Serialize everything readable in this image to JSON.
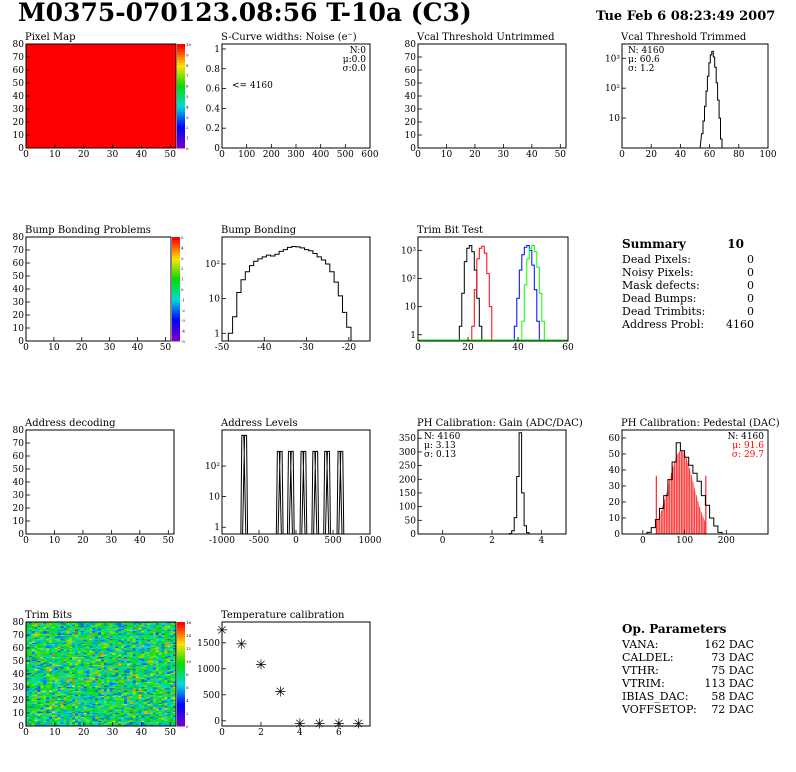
{
  "page": {
    "title": "M0375-070123.08:56 T-10a (C3)",
    "date": "Tue Feb  6 08:23:49 2007"
  },
  "chart_data": [
    {
      "id": "pixel-map",
      "type": "heatmap",
      "title": "Pixel Map",
      "xlim": [
        0,
        52
      ],
      "ylim": [
        0,
        80
      ],
      "xticks": [
        0,
        10,
        20,
        30,
        40,
        50
      ],
      "yticks": [
        0,
        10,
        20,
        30,
        40,
        50,
        60,
        70,
        80
      ],
      "fill": "uniform",
      "color": "#ff0000",
      "zlim": [
        0,
        10
      ],
      "zticks": [
        0,
        1,
        2,
        3,
        4,
        5,
        6,
        7,
        8,
        9,
        10
      ]
    },
    {
      "id": "scurve-widths",
      "type": "histogram",
      "title": "S-Curve widths: Noise (e⁻)",
      "xlim": [
        0,
        600
      ],
      "ylim": [
        0,
        1.05
      ],
      "xticks": [
        0,
        100,
        200,
        300,
        400,
        500,
        600
      ],
      "yticks": [
        0,
        0.2,
        0.4,
        0.6,
        0.8,
        1
      ],
      "stats": [
        [
          "N:",
          "0"
        ],
        [
          "μ:",
          "0.0"
        ],
        [
          "σ:",
          "0.0"
        ]
      ],
      "annotation": "<= 4160"
    },
    {
      "id": "vcal-untrimmed",
      "type": "histogram",
      "title": "Vcal Threshold Untrimmed",
      "xlim": [
        0,
        52
      ],
      "ylim": [
        0,
        80
      ],
      "xticks": [
        0,
        10,
        20,
        30,
        40,
        50
      ],
      "yticks": [
        0,
        10,
        20,
        30,
        40,
        50,
        60,
        70,
        80
      ]
    },
    {
      "id": "vcal-trimmed",
      "type": "histogram",
      "title": "Vcal Threshold Trimmed",
      "xlim": [
        0,
        100
      ],
      "ylog": true,
      "ylim": [
        1,
        3000
      ],
      "xticks": [
        0,
        20,
        40,
        60,
        80,
        100
      ],
      "yticks": [
        10,
        100,
        1000
      ],
      "ytick_labels": [
        "10",
        "10²",
        "10³"
      ],
      "stats": [
        [
          "N: ",
          "4160"
        ],
        [
          "μ: ",
          "60.6"
        ],
        [
          "σ: ",
          "1.2"
        ]
      ],
      "bins": [
        [
          53,
          1
        ],
        [
          55,
          3
        ],
        [
          56,
          8
        ],
        [
          57,
          25
        ],
        [
          58,
          80
        ],
        [
          59,
          250
        ],
        [
          60,
          700
        ],
        [
          61,
          1300
        ],
        [
          62,
          1700
        ],
        [
          63,
          1100
        ],
        [
          64,
          500
        ],
        [
          65,
          150
        ],
        [
          66,
          40
        ],
        [
          67,
          10
        ],
        [
          68,
          2
        ]
      ]
    },
    {
      "id": "bump-problems",
      "type": "heatmap",
      "title": "Bump Bonding Problems",
      "xlim": [
        0,
        52
      ],
      "ylim": [
        0,
        80
      ],
      "xticks": [
        0,
        10,
        20,
        30,
        40,
        50
      ],
      "yticks": [
        0,
        10,
        20,
        30,
        40,
        50,
        60,
        70,
        80
      ],
      "fill": "empty",
      "zlim": [
        -5,
        5
      ],
      "zticks": [
        -5,
        -4,
        -3,
        -2,
        -1,
        0,
        1,
        2,
        3,
        4,
        5
      ]
    },
    {
      "id": "bump-bonding",
      "type": "histogram",
      "title": "Bump Bonding",
      "xlim": [
        -50,
        -15
      ],
      "ylog": true,
      "ylim": [
        0.6,
        600
      ],
      "xticks": [
        -50,
        -40,
        -30,
        -20
      ],
      "yticks": [
        1,
        10,
        100
      ],
      "ytick_labels": [
        "1",
        "10",
        "10²"
      ],
      "bins": [
        [
          -48,
          1
        ],
        [
          -47,
          3
        ],
        [
          -46,
          15
        ],
        [
          -45,
          35
        ],
        [
          -44,
          60
        ],
        [
          -43,
          90
        ],
        [
          -42,
          120
        ],
        [
          -41,
          140
        ],
        [
          -40,
          160
        ],
        [
          -39,
          180
        ],
        [
          -38,
          170
        ],
        [
          -37,
          190
        ],
        [
          -36,
          230
        ],
        [
          -35,
          260
        ],
        [
          -34,
          300
        ],
        [
          -33,
          320
        ],
        [
          -32,
          310
        ],
        [
          -31,
          290
        ],
        [
          -30,
          260
        ],
        [
          -29,
          240
        ],
        [
          -28,
          200
        ],
        [
          -27,
          160
        ],
        [
          -26,
          130
        ],
        [
          -25,
          100
        ],
        [
          -24,
          60
        ],
        [
          -23,
          30
        ],
        [
          -22,
          12
        ],
        [
          -21,
          4
        ],
        [
          -20,
          1.5
        ]
      ]
    },
    {
      "id": "trim-bit-test",
      "type": "histogram",
      "title": "Trim Bit Test",
      "xlim": [
        0,
        60
      ],
      "ylog": true,
      "ylim": [
        0.6,
        3000
      ],
      "xticks": [
        0,
        20,
        40,
        60
      ],
      "yticks": [
        1,
        10,
        100,
        1000
      ],
      "ytick_labels": [
        "1",
        "10",
        "10²",
        "10³"
      ],
      "series": [
        {
          "color": "#000000",
          "bins": [
            [
              17,
              2
            ],
            [
              18,
              30
            ],
            [
              19,
              400
            ],
            [
              20,
              1200
            ],
            [
              21,
              1500
            ],
            [
              22,
              900
            ],
            [
              23,
              200
            ],
            [
              24,
              20
            ],
            [
              25,
              2
            ]
          ]
        },
        {
          "color": "#ff0000",
          "bins": [
            [
              22,
              2
            ],
            [
              23,
              40
            ],
            [
              24,
              500
            ],
            [
              25,
              1200
            ],
            [
              26,
              1400
            ],
            [
              27,
              800
            ],
            [
              28,
              150
            ],
            [
              29,
              10
            ]
          ]
        },
        {
          "color": "#0000ff",
          "bins": [
            [
              39,
              2
            ],
            [
              40,
              20
            ],
            [
              41,
              200
            ],
            [
              42,
              700
            ],
            [
              43,
              1300
            ],
            [
              44,
              1500
            ],
            [
              45,
              1000
            ],
            [
              46,
              300
            ],
            [
              47,
              40
            ],
            [
              48,
              3
            ]
          ]
        },
        {
          "color": "#00ff00",
          "bins": [
            [
              42,
              3
            ],
            [
              43,
              60
            ],
            [
              44,
              500
            ],
            [
              45,
              1200
            ],
            [
              46,
              1500
            ],
            [
              47,
              900
            ],
            [
              48,
              250
            ],
            [
              49,
              30
            ],
            [
              50,
              3
            ]
          ]
        }
      ]
    },
    {
      "id": "address-decoding",
      "type": "heatmap",
      "title": "Address decoding",
      "xlim": [
        0,
        52
      ],
      "ylim": [
        0,
        80
      ],
      "xticks": [
        0,
        10,
        20,
        30,
        40,
        50
      ],
      "yticks": [
        0,
        10,
        20,
        30,
        40,
        50,
        60,
        70,
        80
      ],
      "fill": "empty"
    },
    {
      "id": "address-levels",
      "type": "histogram",
      "title": "Address Levels",
      "xlim": [
        -1000,
        1000
      ],
      "ylog": true,
      "ylim": [
        0.6,
        1500
      ],
      "xticks": [
        -1000,
        -500,
        0,
        500,
        1000
      ],
      "yticks": [
        1,
        10,
        100
      ],
      "ytick_labels": [
        "1",
        "10",
        "10²"
      ],
      "peaks": [
        [
          -700,
          1000
        ],
        [
          -220,
          300
        ],
        [
          -70,
          300
        ],
        [
          100,
          300
        ],
        [
          260,
          300
        ],
        [
          420,
          300
        ],
        [
          600,
          300
        ]
      ]
    },
    {
      "id": "ph-gain",
      "type": "histogram",
      "title": "PH Calibration: Gain (ADC/DAC)",
      "xlim": [
        -1,
        5
      ],
      "ylim": [
        0,
        380
      ],
      "xticks": [
        0,
        2,
        4
      ],
      "yticks": [
        0,
        50,
        100,
        150,
        200,
        250,
        300,
        350
      ],
      "stats": [
        [
          "N: ",
          "4160"
        ],
        [
          "μ: ",
          "3.13"
        ],
        [
          "σ: ",
          "0.13"
        ]
      ],
      "bins": [
        [
          2.75,
          2
        ],
        [
          2.85,
          12
        ],
        [
          2.95,
          60
        ],
        [
          3.05,
          210
        ],
        [
          3.15,
          370
        ],
        [
          3.25,
          150
        ],
        [
          3.35,
          30
        ],
        [
          3.45,
          5
        ]
      ]
    },
    {
      "id": "ph-pedestal",
      "type": "histogram",
      "title": "PH Calibration: Pedestal (DAC)",
      "xlim": [
        -50,
        300
      ],
      "ylim": [
        0,
        65
      ],
      "xticks": [
        0,
        100,
        200
      ],
      "yticks": [
        0,
        10,
        20,
        30,
        40,
        50,
        60
      ],
      "stats": [
        [
          "N: ",
          "4160"
        ],
        [
          "μ: ",
          "91.6"
        ],
        [
          "σ: ",
          "29.7"
        ]
      ],
      "fit_mean": 91.6,
      "fit_sigma": 29.7,
      "bins": [
        [
          15,
          1
        ],
        [
          25,
          4
        ],
        [
          35,
          9
        ],
        [
          45,
          16
        ],
        [
          55,
          24
        ],
        [
          65,
          34
        ],
        [
          75,
          45
        ],
        [
          85,
          57
        ],
        [
          95,
          52
        ],
        [
          105,
          48
        ],
        [
          115,
          43
        ],
        [
          125,
          38
        ],
        [
          135,
          33
        ],
        [
          145,
          24
        ],
        [
          155,
          18
        ],
        [
          165,
          10
        ],
        [
          175,
          5
        ],
        [
          185,
          1
        ]
      ]
    },
    {
      "id": "trim-bits",
      "type": "heatmap",
      "title": "Trim Bits",
      "xlim": [
        0,
        52
      ],
      "ylim": [
        0,
        80
      ],
      "xticks": [
        0,
        10,
        20,
        30,
        40,
        50
      ],
      "yticks": [
        0,
        10,
        20,
        30,
        40,
        50,
        60,
        70,
        80
      ],
      "fill": "noise",
      "zlim": [
        0,
        16
      ],
      "zticks": [
        0,
        2,
        4,
        6,
        8,
        10,
        12,
        14,
        16
      ]
    },
    {
      "id": "temperature-calibration",
      "type": "scatter",
      "title": "Temperature calibration",
      "xlim": [
        0,
        7.6
      ],
      "ylim": [
        -100,
        1900
      ],
      "xticks": [
        0,
        2,
        4,
        6
      ],
      "yticks": [
        0,
        500,
        1000,
        1500
      ],
      "points": [
        [
          0,
          1750
        ],
        [
          1,
          1480
        ],
        [
          2,
          1080
        ],
        [
          3,
          560
        ],
        [
          4,
          -50
        ],
        [
          5,
          -50
        ],
        [
          6,
          -50
        ],
        [
          7,
          -50
        ]
      ]
    }
  ],
  "summary": {
    "title": "Summary",
    "value": "10",
    "rows": [
      {
        "label": "Dead Pixels:",
        "value": "0"
      },
      {
        "label": "Noisy Pixels:",
        "value": "0"
      },
      {
        "label": "Mask defects:",
        "value": "0"
      },
      {
        "label": "Dead Bumps:",
        "value": "0"
      },
      {
        "label": "Dead Trimbits:",
        "value": "0"
      },
      {
        "label": "Address Probl:",
        "value": "4160"
      }
    ]
  },
  "op_parameters": {
    "title": "Op. Parameters",
    "rows": [
      {
        "label": "VANA:",
        "value": "162 DAC"
      },
      {
        "label": "CALDEL:",
        "value": "73 DAC"
      },
      {
        "label": "VTHR:",
        "value": "75 DAC"
      },
      {
        "label": "VTRIM:",
        "value": "113 DAC"
      },
      {
        "label": "IBIAS_DAC:",
        "value": "58 DAC"
      },
      {
        "label": "VOFFSETOP:",
        "value": "72 DAC"
      }
    ]
  }
}
